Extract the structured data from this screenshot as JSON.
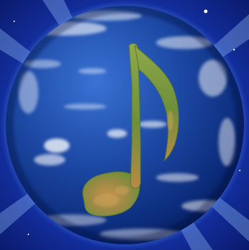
{
  "image": {
    "subject": "earth-globe-with-music-note-continent",
    "colors": {
      "space_deep": "#0a1a6e",
      "space_mid": "#1a3fc4",
      "glow": "#6fa8ff",
      "ocean_dark": "#0b2a78",
      "ocean_light": "#2f63c8",
      "land_green": "#6e8f3a",
      "land_tan": "#c39a55",
      "cloud": "#ffffff"
    }
  }
}
